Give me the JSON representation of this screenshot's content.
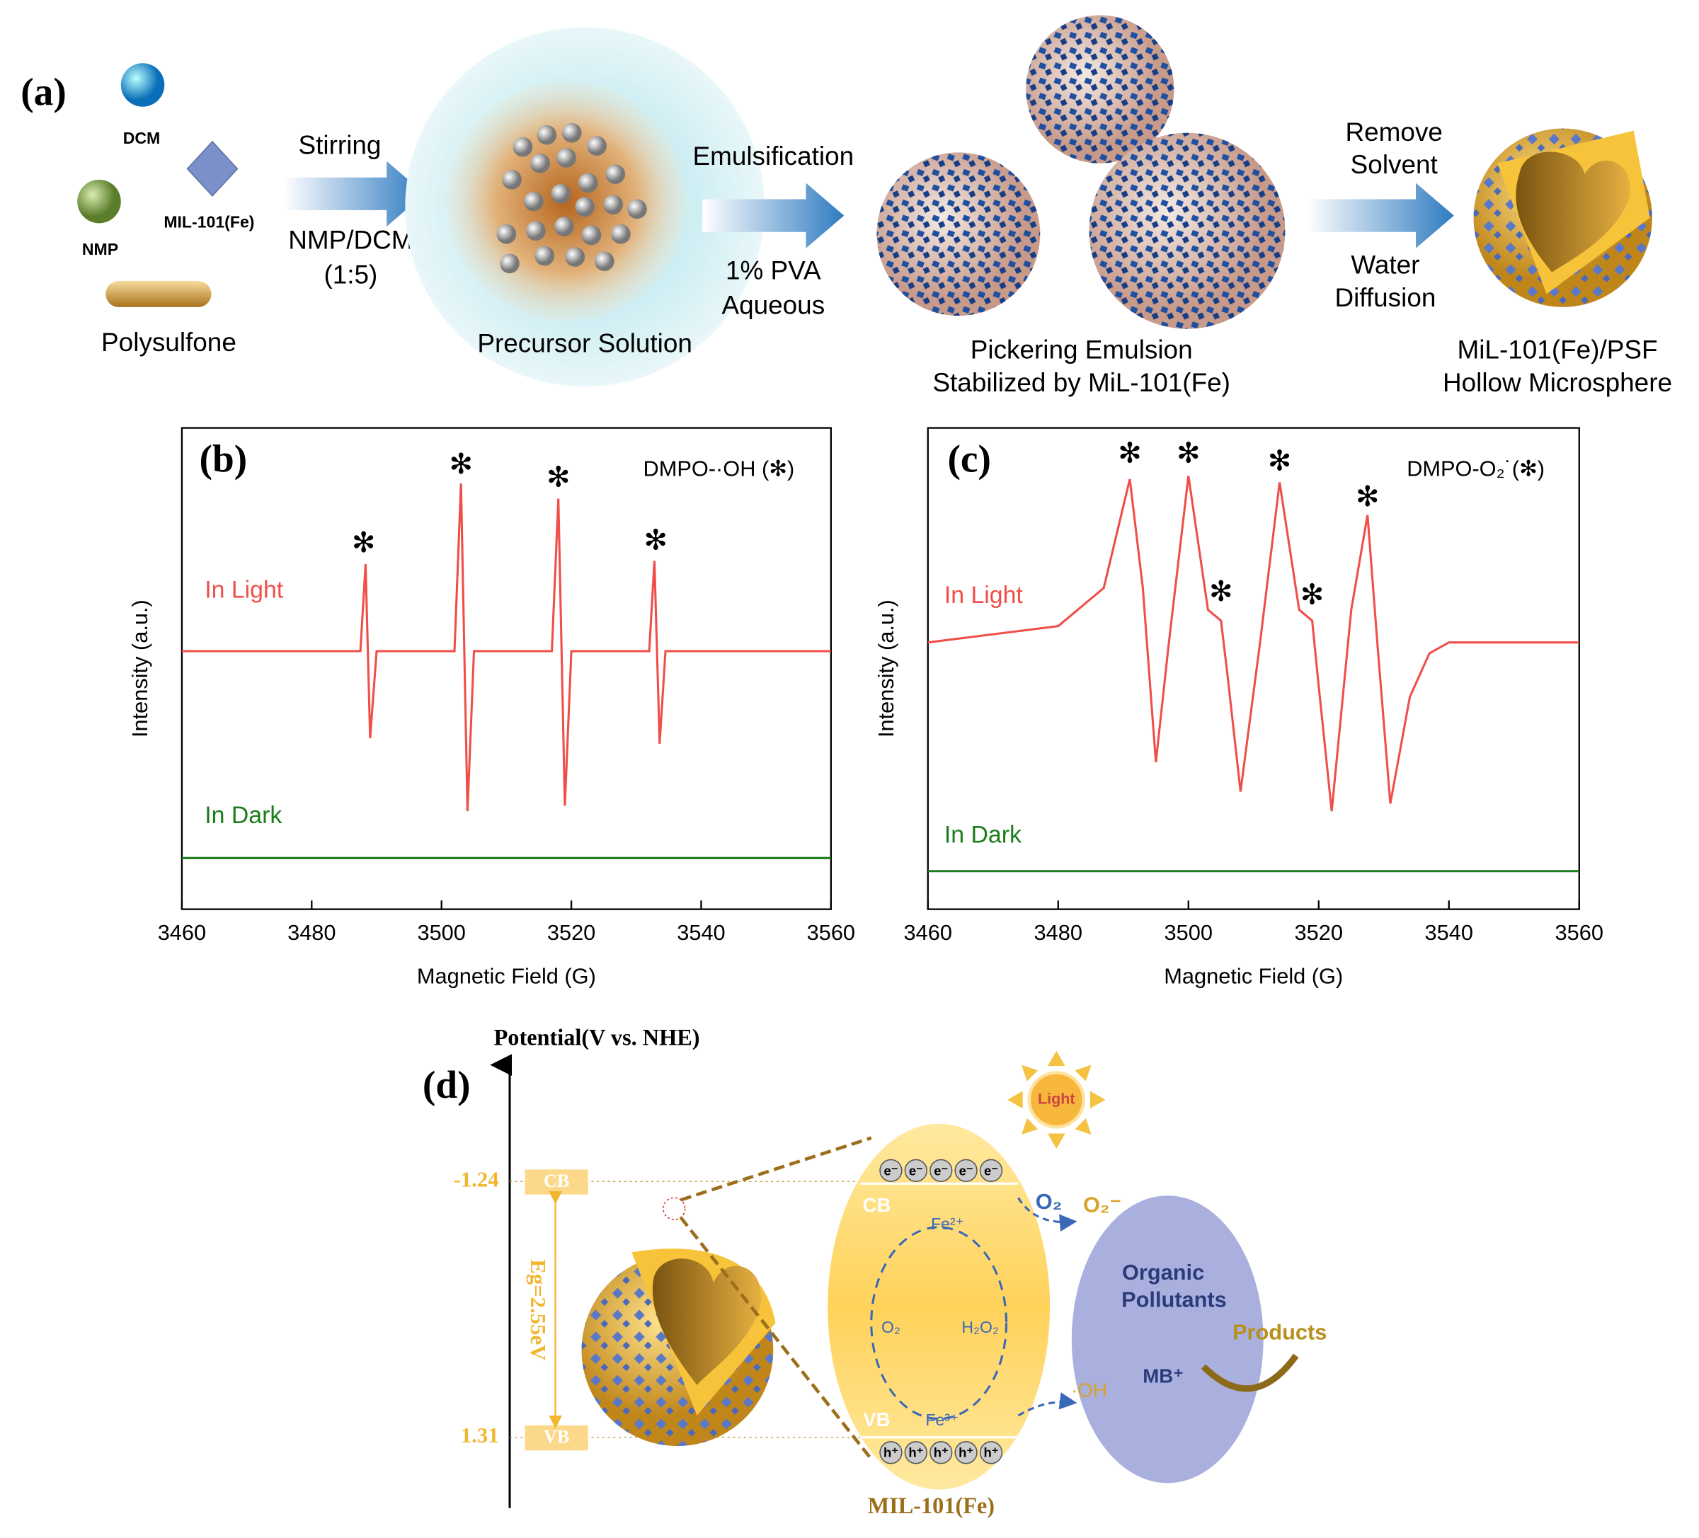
{
  "panel_a": {
    "label": "(a)",
    "dcm": "DCM",
    "mof": "MIL-101(Fe)",
    "nmp": "NMP",
    "polymer": "Polysulfone",
    "step1": {
      "above": "Stirring",
      "below": [
        "NMP/DCM",
        "(1:5)"
      ]
    },
    "precursor": "Precursor Solution",
    "step2": {
      "above": "Emulsification",
      "below": [
        "1% PVA",
        "Aqueous"
      ]
    },
    "emulsion": [
      "Pickering Emulsion",
      "Stabilized by MiL-101(Fe)"
    ],
    "step3": {
      "above": [
        "Remove",
        "Solvent"
      ],
      "below": [
        "Water",
        "Diffusion"
      ]
    },
    "product": [
      "MiL-101(Fe)/PSF",
      "Hollow Microsphere"
    ]
  },
  "chart_data": [
    {
      "type": "line",
      "label": "(b)",
      "annotation": "DMPO-·OH (✻)",
      "xlabel": "Magnetic Field (G)",
      "ylabel": "Intensity (a.u.)",
      "xlim": [
        3460,
        3560
      ],
      "xticks": [
        3460,
        3480,
        3500,
        3520,
        3540,
        3560
      ],
      "ylim": [
        -23.7,
        20.5
      ],
      "series": [
        {
          "name": "In Light",
          "color": "#f04e48",
          "x": [
            3460,
            3487.5,
            3488.3,
            3489,
            3490,
            3502,
            3503,
            3504,
            3505,
            3517,
            3518,
            3519,
            3520,
            3532,
            3532.8,
            3533.6,
            3534.5,
            3560
          ],
          "values": [
            0,
            0,
            8,
            -8,
            0,
            0,
            15.4,
            -14.7,
            0,
            0,
            14,
            -14.2,
            0,
            0,
            8.3,
            -8.5,
            0,
            0
          ]
        },
        {
          "name": "In Dark",
          "color": "#1b7d1b",
          "x": [
            3460,
            3560
          ],
          "values": [
            -19,
            -19
          ]
        }
      ],
      "peak_symbol": "✻",
      "peaks": {
        "x": [
          3488,
          3503,
          3518,
          3533
        ],
        "y": [
          9.8,
          17,
          15.8,
          10
        ]
      }
    },
    {
      "type": "line",
      "label": "(c)",
      "annotation": "DMPO-O₂˙(✻)",
      "xlabel": "Magnetic Field (G)",
      "ylabel": "Intensity (a.u.)",
      "xlim": [
        3460,
        3560
      ],
      "xticks": [
        3460,
        3480,
        3500,
        3520,
        3540,
        3560
      ],
      "ylim": [
        -24.5,
        19.7
      ],
      "series": [
        {
          "name": "In Light",
          "color": "#f04e48",
          "x": [
            3460,
            3480,
            3487,
            3491,
            3493,
            3495,
            3497,
            3500,
            3503,
            3505,
            3506,
            3508,
            3511,
            3514,
            3517,
            3519,
            3520,
            3522,
            3525,
            3527.5,
            3529,
            3531,
            3534,
            3537,
            3540,
            3560
          ],
          "values": [
            0,
            1.5,
            5,
            15,
            5,
            -11,
            0,
            15.3,
            3,
            2,
            -3,
            -13.7,
            0,
            14.7,
            3,
            2,
            -4,
            -15.5,
            3,
            11.7,
            0,
            -14.8,
            -5,
            -1,
            0,
            0
          ]
        },
        {
          "name": "In Dark",
          "color": "#1b7d1b",
          "x": [
            3460,
            3560
          ],
          "values": [
            -21,
            -21
          ]
        }
      ],
      "peak_symbol": "✻",
      "peaks": {
        "x": [
          3491,
          3500,
          3505,
          3514,
          3519,
          3527.5
        ],
        "y": [
          17.2,
          17.2,
          4.5,
          16.5,
          4.2,
          13.2
        ]
      }
    }
  ],
  "panel_d": {
    "label": "(d)",
    "axis_title": "Potential(V vs. NHE)",
    "cb_potential": "-1.24",
    "vb_potential": "1.31",
    "cb": "CB",
    "vb": "VB",
    "band_gap": "Eg=2.55eV",
    "electron": "e⁻",
    "hole": "h⁺",
    "cb_inner": "CB",
    "vb_inner": "VB",
    "fe2": "Fe²⁺",
    "fe3": "Fe³⁺",
    "o2_inner": "O₂",
    "h2o2": "H₂O₂",
    "o2": "O₂",
    "superoxide": "O₂⁻",
    "hydroxyl": "·OH",
    "pollutants": [
      "Organic",
      "Pollutants"
    ],
    "mb": "MB⁺",
    "products": "Products",
    "light": "Light",
    "material": "MIL-101(Fe)"
  }
}
